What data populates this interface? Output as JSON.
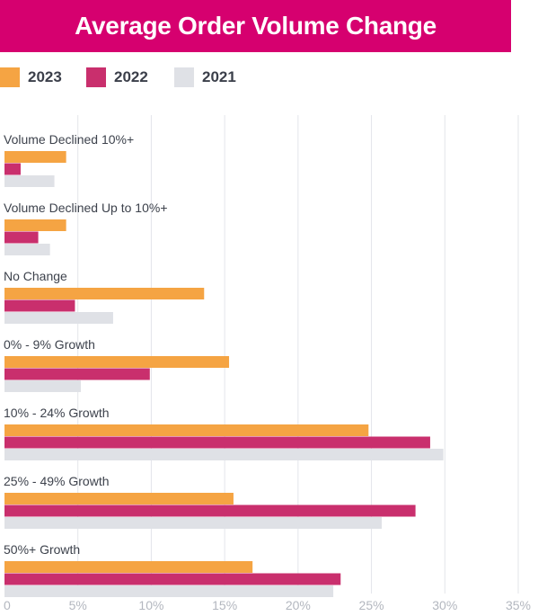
{
  "title": "Average Order Volume Change",
  "legend": [
    {
      "label": "2023",
      "color": "#f5a443"
    },
    {
      "label": "2022",
      "color": "#c92f6d"
    },
    {
      "label": "2021",
      "color": "#dfe1e6"
    }
  ],
  "chart_data": {
    "type": "bar",
    "orientation": "horizontal",
    "title": "Average Order Volume Change",
    "categories": [
      "Volume Declined 10%+",
      "Volume Declined Up to 10%+",
      "No Change",
      "0% - 9% Growth",
      "10% - 24% Growth",
      "25% - 49% Growth",
      "50%+ Growth"
    ],
    "series": [
      {
        "name": "2023",
        "color": "#f5a443",
        "values": [
          4.2,
          4.2,
          13.6,
          15.3,
          24.8,
          15.6,
          16.9
        ]
      },
      {
        "name": "2022",
        "color": "#c92f6d",
        "values": [
          1.1,
          2.3,
          4.8,
          9.9,
          29.0,
          28.0,
          22.9
        ]
      },
      {
        "name": "2021",
        "color": "#dfe1e6",
        "values": [
          3.4,
          3.1,
          7.4,
          5.2,
          29.9,
          25.7,
          22.4
        ]
      }
    ],
    "xlim": [
      0,
      35
    ],
    "xticks": [
      "0",
      "5%",
      "10%",
      "15%",
      "20%",
      "25%",
      "30%",
      "35%"
    ],
    "grid": true,
    "legend_position": "top-left"
  }
}
